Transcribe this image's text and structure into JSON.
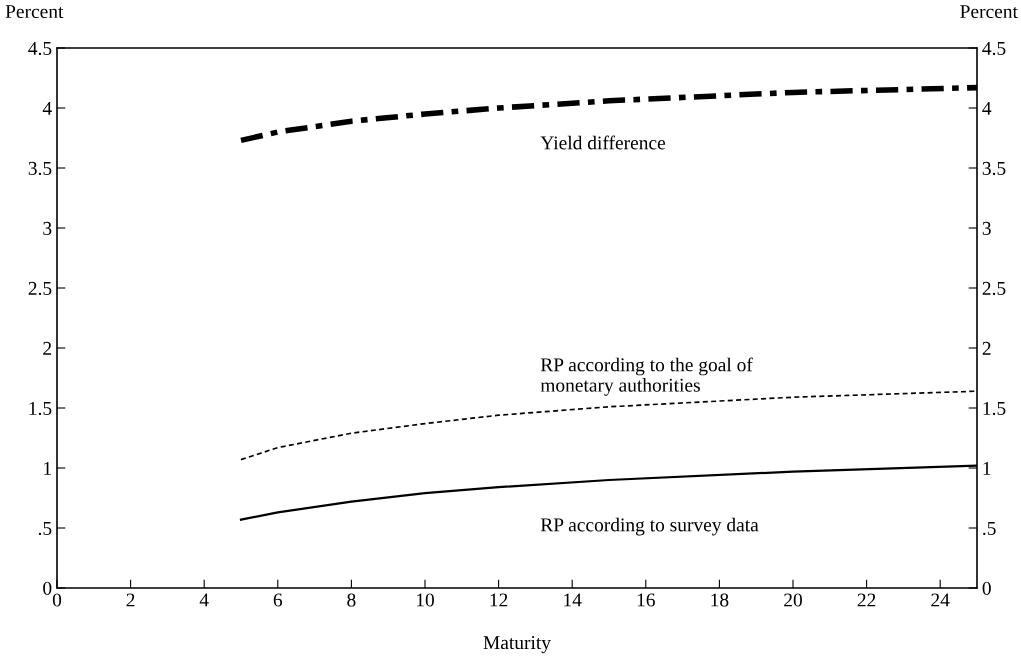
{
  "chart_data": {
    "type": "line",
    "xlabel": "Maturity",
    "ylabel": "Percent",
    "y2label": "Percent",
    "xlim": [
      0,
      25
    ],
    "xticks": [
      0,
      2,
      4,
      6,
      8,
      10,
      12,
      14,
      16,
      18,
      20,
      22,
      24
    ],
    "ylim": [
      0,
      4.5
    ],
    "yticks": [
      {
        "value": 0,
        "label": "0"
      },
      {
        "value": 0.5,
        "label": ".5"
      },
      {
        "value": 1,
        "label": "1"
      },
      {
        "value": 1.5,
        "label": "1.5"
      },
      {
        "value": 2,
        "label": "2"
      },
      {
        "value": 2.5,
        "label": "2.5"
      },
      {
        "value": 3,
        "label": "3"
      },
      {
        "value": 3.5,
        "label": "3.5"
      },
      {
        "value": 4,
        "label": "4"
      },
      {
        "value": 4.5,
        "label": "4.5"
      }
    ],
    "y2lim": [
      0,
      4.5
    ],
    "y2ticks": [
      {
        "value": 0,
        "label": "0"
      },
      {
        "value": 0.5,
        "label": ".5"
      },
      {
        "value": 1,
        "label": "1"
      },
      {
        "value": 1.5,
        "label": "1.5"
      },
      {
        "value": 2,
        "label": "2"
      },
      {
        "value": 2.5,
        "label": "2.5"
      },
      {
        "value": 3,
        "label": "3"
      },
      {
        "value": 3.5,
        "label": "3.5"
      },
      {
        "value": 4,
        "label": "4"
      },
      {
        "value": 4.5,
        "label": "4.5"
      }
    ],
    "grid": false,
    "legend": false,
    "x": [
      5,
      6,
      8,
      10,
      12,
      15,
      20,
      25
    ],
    "series": [
      {
        "name": "Yield difference",
        "color": "#000000",
        "line_style": "dashdot",
        "values": [
          3.73,
          3.8,
          3.89,
          3.95,
          4.0,
          4.06,
          4.13,
          4.17
        ]
      },
      {
        "name": "RP according to the goal of\nmonetary authorities",
        "color": "#000000",
        "line_style": "dotted",
        "values": [
          1.07,
          1.17,
          1.29,
          1.37,
          1.44,
          1.51,
          1.59,
          1.64
        ]
      },
      {
        "name": "RP according to survey data",
        "color": "#000000",
        "line_style": "solid",
        "values": [
          0.57,
          0.63,
          0.72,
          0.79,
          0.84,
          0.9,
          0.97,
          1.02
        ]
      }
    ]
  }
}
